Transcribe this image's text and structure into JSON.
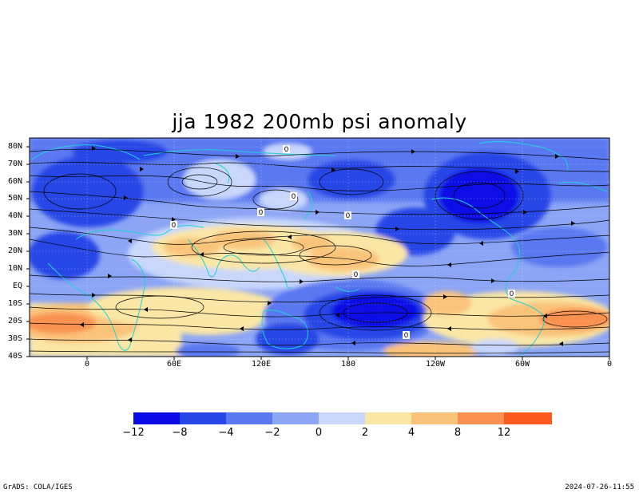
{
  "title": "jja 1982 200mb psi anomaly",
  "lat_labels": [
    "80N",
    "70N",
    "60N",
    "50N",
    "40N",
    "30N",
    "20N",
    "10N",
    "EQ",
    "10S",
    "20S",
    "30S",
    "40S"
  ],
  "lon_labels": [
    "0",
    "60E",
    "120E",
    "180",
    "120W",
    "60W",
    "0"
  ],
  "colorbar": {
    "colors": [
      "#0a0ae6",
      "#2846e6",
      "#5a78f0",
      "#8ca5f5",
      "#c8d7fa",
      "#fae6a5",
      "#fac37a",
      "#fa9150",
      "#fa5a1e"
    ],
    "labels": [
      "−12",
      "−8",
      "−4",
      "−2",
      "0",
      "2",
      "4",
      "8",
      "12"
    ]
  },
  "contour_labels": [
    "0",
    "0",
    "0",
    "0",
    "0",
    "0",
    "0",
    "0"
  ],
  "footer": {
    "left": "GrADS: COLA/IGES",
    "right": "2024-07-26-11:55"
  }
}
